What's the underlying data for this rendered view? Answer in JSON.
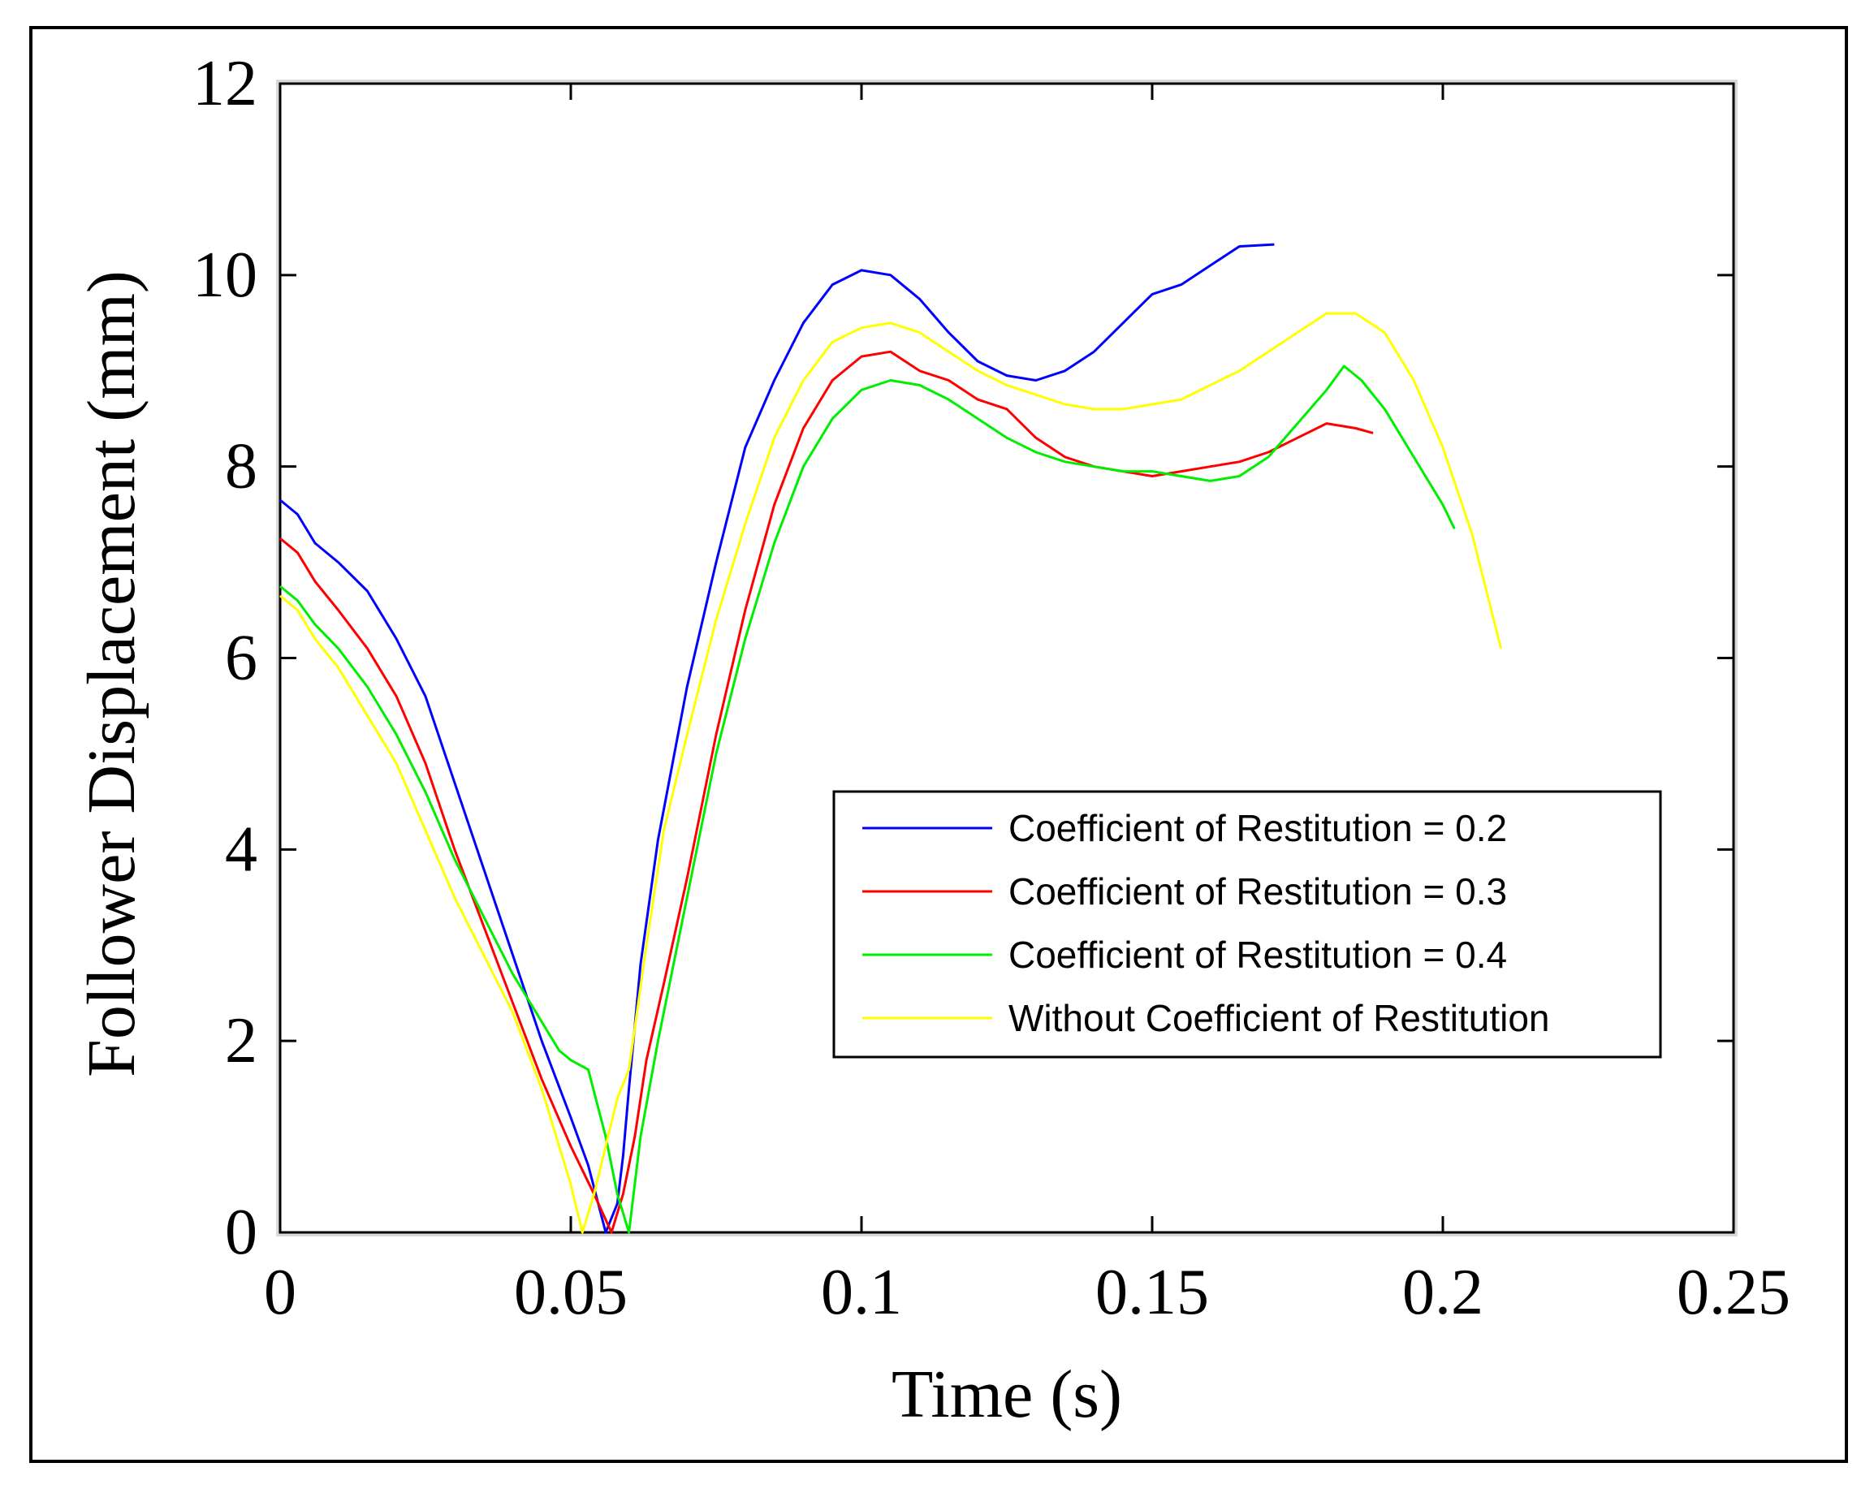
{
  "chart_data": {
    "type": "line",
    "title": "",
    "xlabel": "Time (s)",
    "ylabel": "Follower Displacement (mm)",
    "xlim": [
      0,
      0.25
    ],
    "ylim": [
      0,
      12
    ],
    "xticks": [
      0,
      0.05,
      0.1,
      0.15,
      0.2,
      0.25
    ],
    "xtick_labels": [
      "0",
      "0.05",
      "0.1",
      "0.15",
      "0.2",
      "0.25"
    ],
    "yticks": [
      0,
      2,
      4,
      6,
      8,
      10,
      12
    ],
    "ytick_labels": [
      "0",
      "2",
      "4",
      "6",
      "8",
      "10",
      "12"
    ],
    "grid": false,
    "legend_position": "center-right",
    "series": [
      {
        "name": "Coefficient of Restitution = 0.2",
        "color": "#0000ff",
        "x": [
          0,
          0.003,
          0.006,
          0.01,
          0.015,
          0.02,
          0.025,
          0.03,
          0.035,
          0.04,
          0.045,
          0.05,
          0.053,
          0.056,
          0.058,
          0.059,
          0.06,
          0.062,
          0.065,
          0.07,
          0.075,
          0.08,
          0.085,
          0.09,
          0.095,
          0.1,
          0.105,
          0.11,
          0.115,
          0.12,
          0.125,
          0.13,
          0.135,
          0.14,
          0.145,
          0.15,
          0.155,
          0.16,
          0.165,
          0.171
        ],
        "values": [
          7.65,
          7.5,
          7.2,
          7.0,
          6.7,
          6.2,
          5.6,
          4.7,
          3.8,
          2.9,
          2.0,
          1.2,
          0.7,
          0.0,
          0.3,
          0.8,
          1.5,
          2.8,
          4.1,
          5.7,
          7.0,
          8.2,
          8.9,
          9.5,
          9.9,
          10.05,
          10.0,
          9.75,
          9.4,
          9.1,
          8.95,
          8.9,
          9.0,
          9.2,
          9.5,
          9.8,
          9.9,
          10.1,
          10.3,
          10.32
        ],
        "x_fix": [
          0,
          0.003,
          0.006,
          0.01,
          0.015,
          0.02,
          0.025,
          0.03,
          0.035,
          0.04,
          0.045,
          0.05,
          0.053,
          0.056,
          0.058,
          0.059,
          0.06,
          0.062,
          0.065,
          0.07,
          0.075,
          0.08,
          0.085,
          0.09,
          0.095,
          0.1,
          0.105,
          0.11,
          0.115,
          0.12,
          0.125,
          0.13,
          0.135,
          0.14,
          0.145,
          0.15,
          0.155,
          0.16,
          0.165,
          0.171
        ]
      },
      {
        "name": "Coefficient of Restitution = 0.3",
        "color": "#ff0000",
        "x": [
          0,
          0.003,
          0.006,
          0.01,
          0.015,
          0.02,
          0.025,
          0.03,
          0.035,
          0.04,
          0.045,
          0.05,
          0.054,
          0.057,
          0.059,
          0.061,
          0.063,
          0.066,
          0.07,
          0.075,
          0.08,
          0.085,
          0.09,
          0.095,
          0.1,
          0.105,
          0.11,
          0.115,
          0.12,
          0.125,
          0.13,
          0.135,
          0.14,
          0.145,
          0.15,
          0.155,
          0.16,
          0.165,
          0.17,
          0.175,
          0.18,
          0.185,
          0.188
        ],
        "values": [
          7.25,
          7.1,
          6.8,
          6.5,
          6.1,
          5.6,
          4.9,
          4.0,
          3.2,
          2.4,
          1.6,
          0.9,
          0.4,
          0.0,
          0.4,
          1.0,
          1.8,
          2.6,
          3.7,
          5.2,
          6.5,
          7.6,
          8.4,
          8.9,
          9.15,
          9.2,
          9.0,
          8.9,
          8.7,
          8.6,
          8.3,
          8.1,
          8.0,
          7.95,
          7.9,
          7.95,
          8.0,
          8.05,
          8.15,
          8.3,
          8.45,
          8.4,
          8.35
        ]
      },
      {
        "name": "Coefficient of Restitution = 0.4",
        "color": "#00ee00",
        "x": [
          0,
          0.003,
          0.006,
          0.01,
          0.015,
          0.02,
          0.025,
          0.03,
          0.035,
          0.04,
          0.045,
          0.048,
          0.05,
          0.053,
          0.056,
          0.058,
          0.06,
          0.062,
          0.065,
          0.07,
          0.075,
          0.08,
          0.085,
          0.09,
          0.095,
          0.1,
          0.105,
          0.11,
          0.115,
          0.12,
          0.125,
          0.13,
          0.135,
          0.14,
          0.145,
          0.15,
          0.155,
          0.16,
          0.165,
          0.17,
          0.175,
          0.18,
          0.183,
          0.186,
          0.19,
          0.195,
          0.2,
          0.202
        ],
        "values": [
          6.75,
          6.6,
          6.35,
          6.1,
          5.7,
          5.2,
          4.6,
          3.9,
          3.3,
          2.7,
          2.2,
          1.9,
          1.8,
          1.7,
          1.0,
          0.4,
          0.0,
          1.0,
          2.0,
          3.5,
          5.0,
          6.2,
          7.2,
          8.0,
          8.5,
          8.8,
          8.9,
          8.85,
          8.7,
          8.5,
          8.3,
          8.15,
          8.05,
          8.0,
          7.95,
          7.95,
          7.9,
          7.85,
          7.9,
          8.1,
          8.45,
          8.8,
          9.05,
          8.9,
          8.6,
          8.1,
          7.6,
          7.35
        ]
      },
      {
        "name": "Without Coefficient of Restitution",
        "color": "#ffff00",
        "x": [
          0,
          0.003,
          0.006,
          0.01,
          0.015,
          0.02,
          0.025,
          0.03,
          0.035,
          0.04,
          0.045,
          0.048,
          0.05,
          0.052,
          0.054,
          0.056,
          0.058,
          0.06,
          0.063,
          0.066,
          0.07,
          0.075,
          0.08,
          0.085,
          0.09,
          0.095,
          0.1,
          0.105,
          0.11,
          0.115,
          0.12,
          0.125,
          0.13,
          0.135,
          0.14,
          0.145,
          0.15,
          0.155,
          0.16,
          0.165,
          0.17,
          0.175,
          0.18,
          0.185,
          0.19,
          0.195,
          0.2,
          0.205,
          0.21
        ],
        "values": [
          6.65,
          6.5,
          6.2,
          5.9,
          5.4,
          4.9,
          4.2,
          3.5,
          2.9,
          2.3,
          1.5,
          0.9,
          0.5,
          0.0,
          0.4,
          0.9,
          1.4,
          1.7,
          3.0,
          4.2,
          5.2,
          6.4,
          7.4,
          8.3,
          8.9,
          9.3,
          9.45,
          9.5,
          9.4,
          9.2,
          9.0,
          8.85,
          8.75,
          8.65,
          8.6,
          8.6,
          8.65,
          8.7,
          8.85,
          9.0,
          9.2,
          9.4,
          9.6,
          9.6,
          9.4,
          8.9,
          8.2,
          7.3,
          6.1
        ]
      }
    ]
  }
}
